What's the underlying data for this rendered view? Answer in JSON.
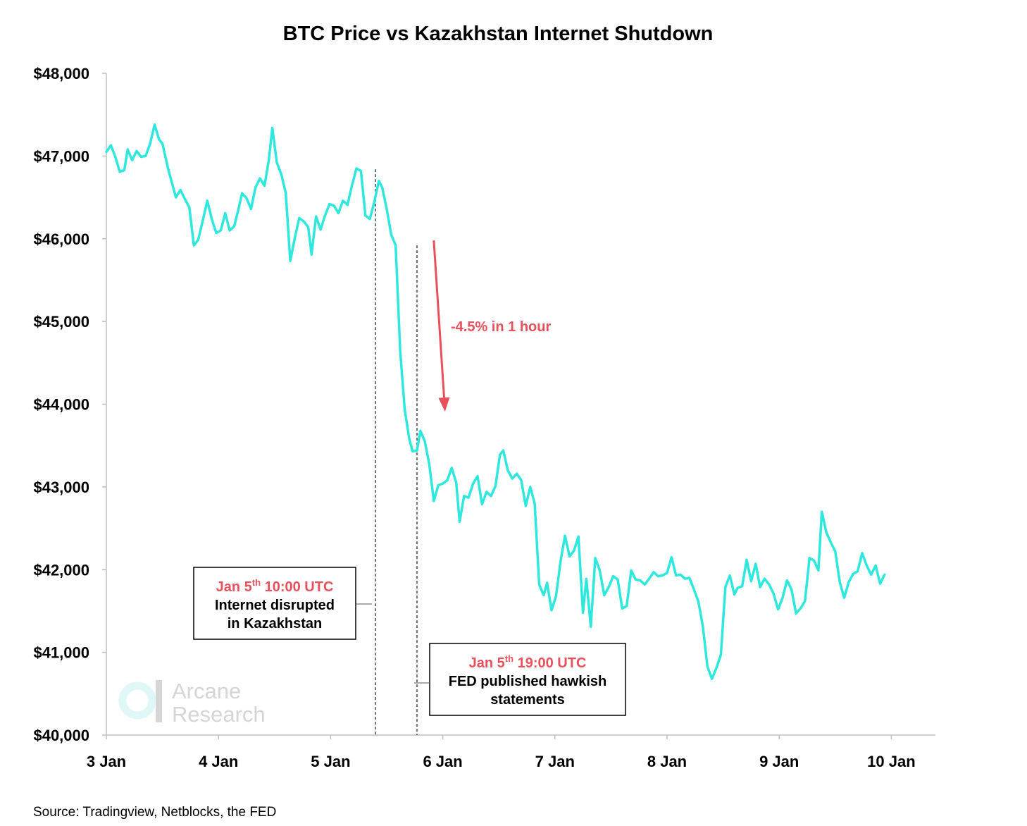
{
  "chart_data": {
    "type": "line",
    "title": "BTC Price vs Kazakhstan Internet Shutdown",
    "xlabel": "",
    "ylabel": "",
    "ylim": [
      40000,
      48000
    ],
    "xlim": [
      0,
      7.4
    ],
    "y_ticks": [
      {
        "value": 48000,
        "label": "$48,000"
      },
      {
        "value": 47000,
        "label": "$47,000"
      },
      {
        "value": 46000,
        "label": "$46,000"
      },
      {
        "value": 45000,
        "label": "$45,000"
      },
      {
        "value": 44000,
        "label": "$44,000"
      },
      {
        "value": 43000,
        "label": "$43,000"
      },
      {
        "value": 42000,
        "label": "$42,000"
      },
      {
        "value": 41000,
        "label": "$41,000"
      },
      {
        "value": 40000,
        "label": "$40,000"
      }
    ],
    "x_ticks": [
      {
        "value": 0,
        "label": "3 Jan"
      },
      {
        "value": 1,
        "label": "4 Jan"
      },
      {
        "value": 2,
        "label": "5 Jan"
      },
      {
        "value": 3,
        "label": "6 Jan"
      },
      {
        "value": 4,
        "label": "7 Jan"
      },
      {
        "value": 5,
        "label": "8 Jan"
      },
      {
        "value": 6,
        "label": "9 Jan"
      },
      {
        "value": 7,
        "label": "10 Jan"
      }
    ],
    "grid": false,
    "line_color": "#2ee8de",
    "annotation_color": "#e8505b",
    "series": [
      {
        "points": [
          [
            0.0,
            47050
          ],
          [
            0.04,
            47130
          ],
          [
            0.08,
            46990
          ],
          [
            0.12,
            46810
          ],
          [
            0.16,
            46830
          ],
          [
            0.19,
            47080
          ],
          [
            0.23,
            46950
          ],
          [
            0.27,
            47060
          ],
          [
            0.31,
            46990
          ],
          [
            0.35,
            47000
          ],
          [
            0.39,
            47150
          ],
          [
            0.43,
            47380
          ],
          [
            0.47,
            47200
          ],
          [
            0.5,
            47150
          ],
          [
            0.55,
            46850
          ],
          [
            0.58,
            46700
          ],
          [
            0.62,
            46500
          ],
          [
            0.66,
            46590
          ],
          [
            0.7,
            46480
          ],
          [
            0.74,
            46380
          ],
          [
            0.78,
            45920
          ],
          [
            0.82,
            45990
          ],
          [
            0.86,
            46220
          ],
          [
            0.9,
            46460
          ],
          [
            0.94,
            46240
          ],
          [
            0.98,
            46070
          ],
          [
            1.02,
            46100
          ],
          [
            1.06,
            46310
          ],
          [
            1.1,
            46100
          ],
          [
            1.14,
            46150
          ],
          [
            1.18,
            46370
          ],
          [
            1.21,
            46550
          ],
          [
            1.25,
            46490
          ],
          [
            1.29,
            46360
          ],
          [
            1.33,
            46620
          ],
          [
            1.37,
            46730
          ],
          [
            1.41,
            46640
          ],
          [
            1.45,
            46960
          ],
          [
            1.48,
            47340
          ],
          [
            1.52,
            46920
          ],
          [
            1.56,
            46780
          ],
          [
            1.6,
            46550
          ],
          [
            1.64,
            45730
          ],
          [
            1.68,
            46010
          ],
          [
            1.72,
            46250
          ],
          [
            1.76,
            46210
          ],
          [
            1.8,
            46140
          ],
          [
            1.83,
            45810
          ],
          [
            1.87,
            46270
          ],
          [
            1.91,
            46110
          ],
          [
            1.95,
            46280
          ],
          [
            1.99,
            46420
          ],
          [
            2.03,
            46400
          ],
          [
            2.07,
            46310
          ],
          [
            2.11,
            46460
          ],
          [
            2.15,
            46410
          ],
          [
            2.19,
            46640
          ],
          [
            2.23,
            46850
          ],
          [
            2.27,
            46820
          ],
          [
            2.31,
            46280
          ],
          [
            2.35,
            46240
          ],
          [
            2.39,
            46450
          ],
          [
            2.43,
            46700
          ],
          [
            2.46,
            46620
          ],
          [
            2.5,
            46360
          ],
          [
            2.54,
            46050
          ],
          [
            2.58,
            45920
          ],
          [
            2.62,
            44650
          ],
          [
            2.66,
            43940
          ],
          [
            2.7,
            43590
          ],
          [
            2.73,
            43430
          ],
          [
            2.77,
            43440
          ],
          [
            2.8,
            43680
          ],
          [
            2.84,
            43550
          ],
          [
            2.88,
            43270
          ],
          [
            2.92,
            42830
          ],
          [
            2.96,
            43020
          ],
          [
            3.0,
            43040
          ],
          [
            3.04,
            43080
          ],
          [
            3.08,
            43230
          ],
          [
            3.12,
            43050
          ],
          [
            3.15,
            42580
          ],
          [
            3.19,
            42890
          ],
          [
            3.23,
            42870
          ],
          [
            3.27,
            43040
          ],
          [
            3.31,
            43130
          ],
          [
            3.35,
            42790
          ],
          [
            3.39,
            42940
          ],
          [
            3.43,
            42890
          ],
          [
            3.47,
            43010
          ],
          [
            3.51,
            43390
          ],
          [
            3.54,
            43440
          ],
          [
            3.58,
            43200
          ],
          [
            3.62,
            43100
          ],
          [
            3.66,
            43160
          ],
          [
            3.7,
            43080
          ],
          [
            3.74,
            42770
          ],
          [
            3.78,
            43000
          ],
          [
            3.82,
            42800
          ],
          [
            3.86,
            41820
          ],
          [
            3.9,
            41690
          ],
          [
            3.93,
            41840
          ],
          [
            3.97,
            41510
          ],
          [
            4.01,
            41680
          ],
          [
            4.05,
            42100
          ],
          [
            4.09,
            42410
          ],
          [
            4.13,
            42160
          ],
          [
            4.17,
            42230
          ],
          [
            4.21,
            42400
          ],
          [
            4.25,
            41480
          ],
          [
            4.28,
            41890
          ],
          [
            4.32,
            41310
          ],
          [
            4.36,
            42140
          ],
          [
            4.4,
            41990
          ],
          [
            4.44,
            41690
          ],
          [
            4.48,
            41790
          ],
          [
            4.52,
            41920
          ],
          [
            4.56,
            41880
          ],
          [
            4.6,
            41530
          ],
          [
            4.64,
            41560
          ],
          [
            4.68,
            41990
          ],
          [
            4.72,
            41880
          ],
          [
            4.76,
            41870
          ],
          [
            4.8,
            41820
          ],
          [
            4.84,
            41890
          ],
          [
            4.88,
            41970
          ],
          [
            4.92,
            41920
          ],
          [
            4.96,
            41930
          ],
          [
            5.0,
            41960
          ],
          [
            5.04,
            42150
          ],
          [
            5.08,
            41930
          ],
          [
            5.12,
            41940
          ],
          [
            5.16,
            41890
          ],
          [
            5.2,
            41900
          ],
          [
            5.24,
            41760
          ],
          [
            5.28,
            41610
          ],
          [
            5.32,
            41310
          ],
          [
            5.36,
            40830
          ],
          [
            5.4,
            40680
          ],
          [
            5.44,
            40810
          ],
          [
            5.48,
            40970
          ],
          [
            5.52,
            41790
          ],
          [
            5.56,
            41930
          ],
          [
            5.6,
            41700
          ],
          [
            5.63,
            41780
          ],
          [
            5.67,
            41800
          ],
          [
            5.71,
            42120
          ],
          [
            5.75,
            41860
          ],
          [
            5.79,
            42070
          ],
          [
            5.83,
            41790
          ],
          [
            5.87,
            41890
          ],
          [
            5.91,
            41820
          ],
          [
            5.95,
            41710
          ],
          [
            5.99,
            41520
          ],
          [
            6.03,
            41660
          ],
          [
            6.07,
            41870
          ],
          [
            6.11,
            41760
          ],
          [
            6.15,
            41470
          ],
          [
            6.19,
            41530
          ],
          [
            6.23,
            41620
          ],
          [
            6.27,
            42140
          ],
          [
            6.31,
            42110
          ],
          [
            6.35,
            41990
          ],
          [
            6.38,
            42700
          ],
          [
            6.42,
            42450
          ],
          [
            6.46,
            42330
          ],
          [
            6.5,
            42220
          ],
          [
            6.54,
            41850
          ],
          [
            6.58,
            41660
          ],
          [
            6.62,
            41850
          ],
          [
            6.66,
            41950
          ],
          [
            6.7,
            41980
          ],
          [
            6.74,
            42200
          ],
          [
            6.78,
            42050
          ],
          [
            6.82,
            41940
          ],
          [
            6.86,
            42050
          ],
          [
            6.9,
            41830
          ],
          [
            6.94,
            41940
          ]
        ]
      }
    ],
    "event_lines": [
      {
        "x": 2.4,
        "y": 46840
      },
      {
        "x": 2.77,
        "y": 45920
      }
    ],
    "arrow": {
      "from": [
        2.92,
        45980
      ],
      "to": [
        3.02,
        43910
      ]
    },
    "annotations": {
      "drop_label": "-4.5% in 1 hour",
      "box1": {
        "date": "Jan 5",
        "sup": "th",
        "time": " 10:00 UTC",
        "line1": "Internet disrupted",
        "line2": "in Kazakhstan"
      },
      "box2": {
        "date": "Jan 5",
        "sup": "th",
        "time": " 19:00 UTC",
        "line1": "FED published hawkish",
        "line2": "statements"
      }
    },
    "watermark": {
      "line1": "Arcane",
      "line2": "Research"
    },
    "source": "Source: Tradingview, Netblocks, the FED"
  }
}
